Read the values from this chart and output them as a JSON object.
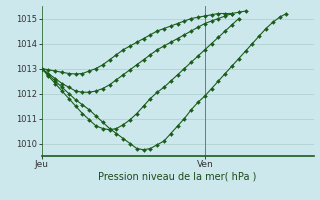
{
  "title": "Pression niveau de la mer( hPa )",
  "bg_color": "#cce8ec",
  "grid_color": "#aacccc",
  "line_color": "#1a5c1a",
  "ylim": [
    1009.5,
    1015.5
  ],
  "yticks": [
    1010,
    1011,
    1012,
    1013,
    1014,
    1015
  ],
  "xlim": [
    0,
    40
  ],
  "jeu_x": 0,
  "ven_x": 24,
  "xmax": 40,
  "vline_x": 24,
  "series": [
    {
      "x": [
        0,
        1,
        2,
        3,
        4,
        5,
        6,
        7,
        8,
        9,
        10,
        11,
        12,
        13,
        14,
        15,
        16,
        17,
        18,
        19,
        20,
        21,
        22,
        23,
        24,
        25,
        26,
        27,
        28,
        29,
        30,
        31,
        32,
        33,
        34,
        35,
        36,
        37,
        38,
        39,
        40
      ],
      "y": [
        1013.0,
        1012.95,
        1012.9,
        1012.85,
        1012.8,
        1012.78,
        1012.8,
        1012.9,
        1013.0,
        1013.15,
        1013.35,
        1013.55,
        1013.75,
        1013.9,
        1014.05,
        1014.2,
        1014.35,
        1014.5,
        1014.6,
        1014.7,
        1014.8,
        1014.9,
        1015.0,
        1015.05,
        1015.1,
        1015.15,
        1015.2,
        1015.2,
        1015.2,
        1015.25,
        1015.3,
        null,
        null,
        null,
        null,
        null,
        null,
        null,
        null,
        null,
        null
      ]
    },
    {
      "x": [
        0,
        1,
        2,
        3,
        4,
        5,
        6,
        7,
        8,
        9,
        10,
        11,
        12,
        13,
        14,
        15,
        16,
        17,
        18,
        19,
        20,
        21,
        22,
        23,
        24,
        25,
        26,
        27,
        28,
        29,
        30,
        31,
        32,
        33,
        34,
        35,
        36,
        37,
        38,
        39,
        40
      ],
      "y": [
        1013.0,
        1012.75,
        1012.5,
        1012.25,
        1012.0,
        1011.75,
        1011.55,
        1011.35,
        1011.1,
        1010.85,
        1010.6,
        1010.4,
        1010.2,
        1010.0,
        1009.8,
        1009.75,
        1009.8,
        1009.95,
        1010.1,
        1010.4,
        1010.7,
        1011.0,
        1011.35,
        1011.65,
        1011.9,
        1012.2,
        1012.5,
        1012.8,
        1013.1,
        1013.4,
        1013.7,
        1014.0,
        1014.3,
        1014.6,
        1014.85,
        1015.05,
        1015.2,
        null,
        null,
        null,
        null
      ]
    },
    {
      "x": [
        0,
        1,
        2,
        3,
        4,
        5,
        6,
        7,
        8,
        9,
        10,
        11,
        12,
        13,
        14,
        15,
        16,
        17,
        18,
        19,
        20,
        21,
        22,
        23,
        24,
        25,
        26,
        27,
        28,
        29,
        30,
        31,
        32,
        33,
        34,
        35,
        36,
        37,
        38,
        39,
        40
      ],
      "y": [
        1013.0,
        1012.8,
        1012.6,
        1012.4,
        1012.25,
        1012.1,
        1012.05,
        1012.05,
        1012.1,
        1012.2,
        1012.35,
        1012.55,
        1012.75,
        1012.95,
        1013.15,
        1013.35,
        1013.55,
        1013.75,
        1013.9,
        1014.05,
        1014.2,
        1014.35,
        1014.5,
        1014.65,
        1014.8,
        1014.9,
        1015.0,
        1015.1,
        1015.2,
        null,
        null,
        null,
        null,
        null,
        null,
        null,
        null,
        null,
        null,
        null,
        null
      ]
    },
    {
      "x": [
        0,
        1,
        2,
        3,
        4,
        5,
        6,
        7,
        8,
        9,
        10,
        11,
        12,
        13,
        14,
        15,
        16,
        17,
        18,
        19,
        20,
        21,
        22,
        23,
        24,
        25,
        26,
        27,
        28,
        29,
        30,
        31,
        32,
        33,
        34,
        35,
        36,
        37,
        38,
        39,
        40
      ],
      "y": [
        1013.0,
        1012.7,
        1012.4,
        1012.1,
        1011.8,
        1011.5,
        1011.2,
        1010.95,
        1010.7,
        1010.6,
        1010.55,
        1010.6,
        1010.75,
        1010.95,
        1011.2,
        1011.5,
        1011.8,
        1012.05,
        1012.25,
        1012.5,
        1012.75,
        1013.0,
        1013.25,
        1013.5,
        1013.75,
        1014.0,
        1014.25,
        1014.5,
        1014.75,
        1015.0,
        null,
        null,
        null,
        null,
        null,
        null,
        null,
        null,
        null,
        null,
        null
      ]
    }
  ]
}
